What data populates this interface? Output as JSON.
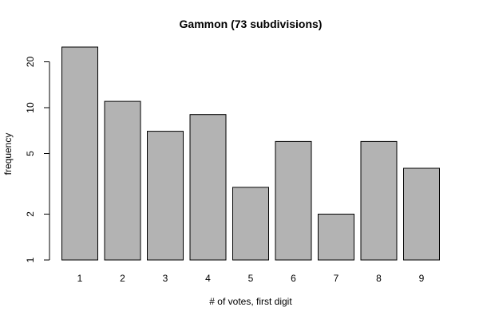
{
  "chart_data": {
    "type": "bar",
    "title": "Gammon (73 subdivisions)",
    "xlabel": "# of votes, first digit",
    "ylabel": "frequency",
    "categories": [
      "1",
      "2",
      "3",
      "4",
      "5",
      "6",
      "7",
      "8",
      "9"
    ],
    "values": [
      25,
      11,
      7,
      9,
      3,
      6,
      2,
      6,
      4
    ],
    "y_scale": "log",
    "y_ticks": [
      1,
      2,
      5,
      10,
      20
    ],
    "y_tick_labels": [
      "1",
      "2",
      "5",
      "10",
      "20"
    ],
    "ylim": [
      1,
      25
    ],
    "grid": false,
    "bar_color": "#b3b3b3"
  }
}
